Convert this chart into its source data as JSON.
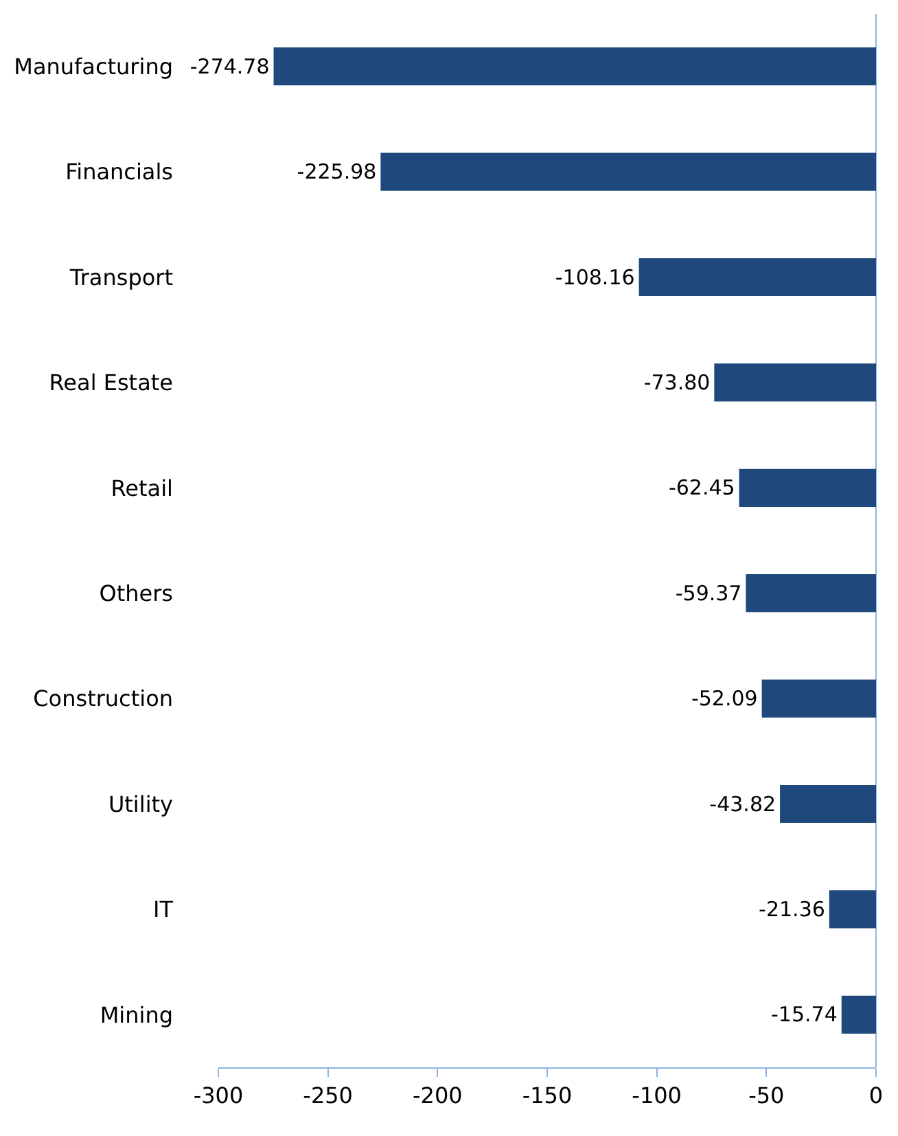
{
  "chart_data": {
    "type": "bar",
    "orientation": "horizontal",
    "categories": [
      "Manufacturing",
      "Financials",
      "Transport",
      "Real Estate",
      "Retail",
      "Others",
      "Construction",
      "Utility",
      "IT",
      "Mining"
    ],
    "values": [
      -274.78,
      -225.98,
      -108.16,
      -73.8,
      -62.45,
      -59.37,
      -52.09,
      -43.82,
      -21.36,
      -15.74
    ],
    "value_labels": [
      "-274.78",
      "-225.98",
      "-108.16",
      "-73.80",
      "-62.45",
      "-59.37",
      "-52.09",
      "-43.82",
      "-21.36",
      "-15.74"
    ],
    "color": "#1f497d",
    "xlim": [
      -300,
      0
    ],
    "xticks": [
      -300,
      -250,
      -200,
      -150,
      -100,
      -50,
      0
    ],
    "grid": false,
    "legend": false
  }
}
